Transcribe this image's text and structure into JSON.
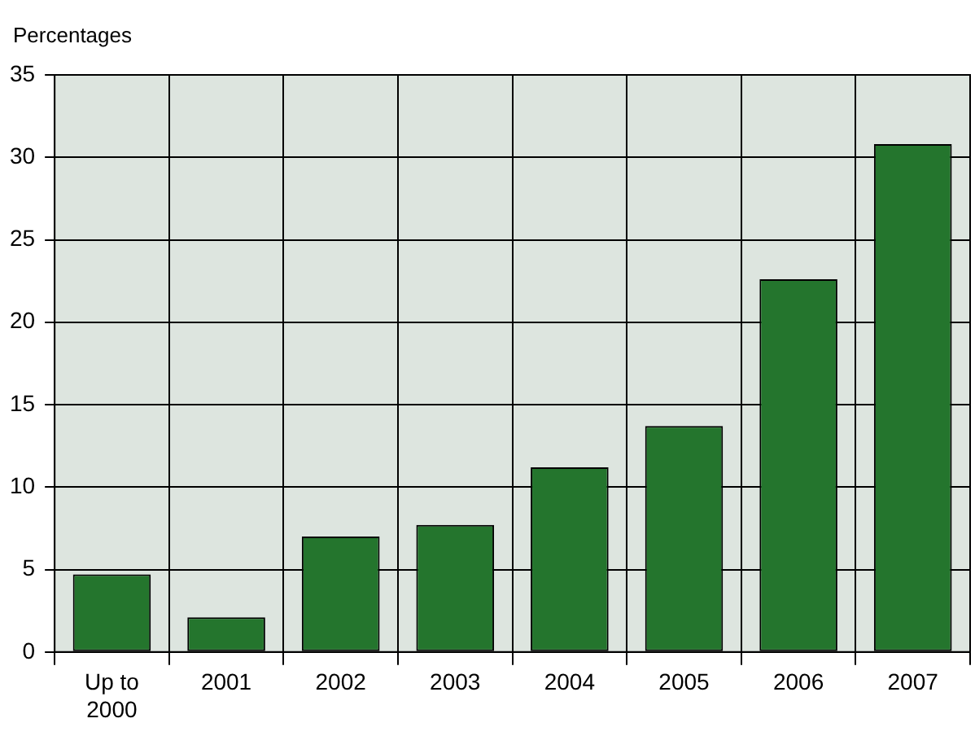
{
  "chart_data": {
    "type": "bar",
    "ylabel": "Percentages",
    "categories": [
      "Up to 2000",
      "2001",
      "2002",
      "2003",
      "2004",
      "2005",
      "2006",
      "2007"
    ],
    "values": [
      4.7,
      2.1,
      7.0,
      7.7,
      11.2,
      13.7,
      22.6,
      30.8
    ],
    "color": "#24752d",
    "ylim": [
      0,
      35
    ],
    "yticks": [
      0,
      5,
      10,
      15,
      20,
      25,
      30,
      35
    ],
    "grid": true
  }
}
